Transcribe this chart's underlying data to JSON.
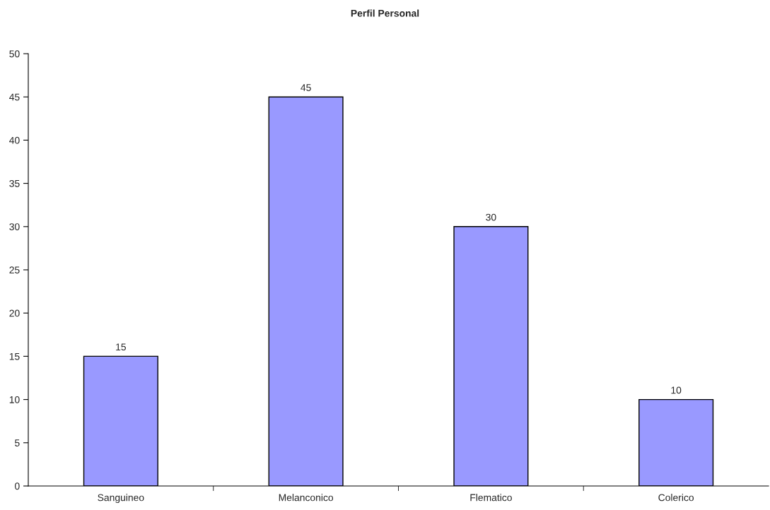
{
  "chart_data": {
    "type": "bar",
    "title": "Perfil Personal",
    "categories": [
      "Sanguineo",
      "Melanconico",
      "Flematico",
      "Colerico"
    ],
    "values": [
      15,
      45,
      30,
      10
    ],
    "color": "#9999ff",
    "ylim": [
      0,
      50
    ],
    "yticks": [
      0,
      5,
      10,
      15,
      20,
      25,
      30,
      35,
      40,
      45,
      50
    ],
    "data_labels": true,
    "grid": false
  }
}
